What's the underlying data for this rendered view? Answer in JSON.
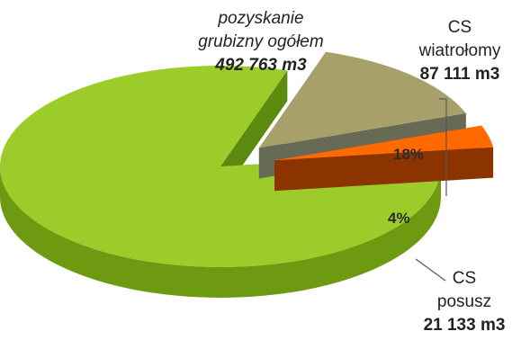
{
  "chart_data": {
    "type": "pie",
    "title": "",
    "slices": [
      {
        "label_line1": "pozyskanie",
        "label_line2": "grubizny ogółem",
        "value_label": "492 763 m3",
        "value": 492763,
        "percent_label": "",
        "color": "#9ccc2a",
        "side": "#6e9a12",
        "inner": "#5b8a0f"
      },
      {
        "label_line1": "CS",
        "label_line2": "wiatrołomy",
        "value_label": "87 111 m3",
        "value": 87111,
        "percent_label": "18%",
        "color": "#a8a06a",
        "side": "#757044",
        "inner": "#676a55"
      },
      {
        "label_line1": "CS",
        "label_line2": "posusz",
        "value_label": "21 133 m3",
        "value": 21133,
        "percent_label": "4%",
        "color": "#ff6a00",
        "side": "#a83e00",
        "inner": "#8c3400"
      }
    ],
    "legend": "none"
  }
}
